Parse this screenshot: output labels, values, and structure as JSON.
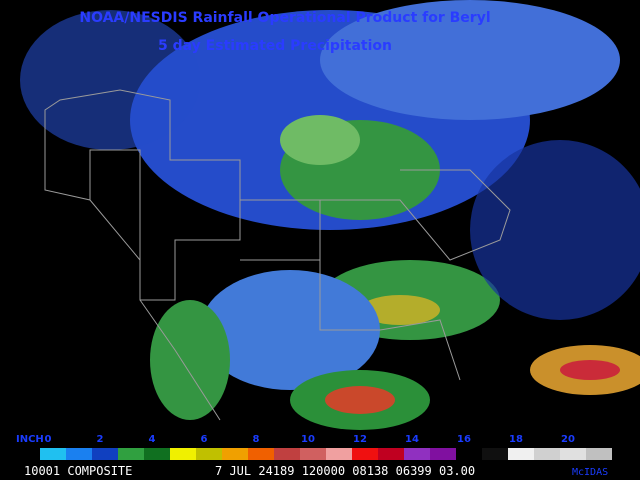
{
  "header": {
    "title": "NOAA/NESDIS Rainfall Operational Product for Beryl",
    "subtitle": "5 day Estimated Precipitation"
  },
  "legend": {
    "unit": "INCH",
    "ticks": [
      0,
      2,
      4,
      6,
      8,
      10,
      12,
      14,
      16,
      18,
      20
    ]
  },
  "footer": {
    "frame": "10001 COMPOSITE",
    "stamp": "7 JUL 24189 120000 08138 06399 03.00",
    "brand": "McIDAS"
  }
}
